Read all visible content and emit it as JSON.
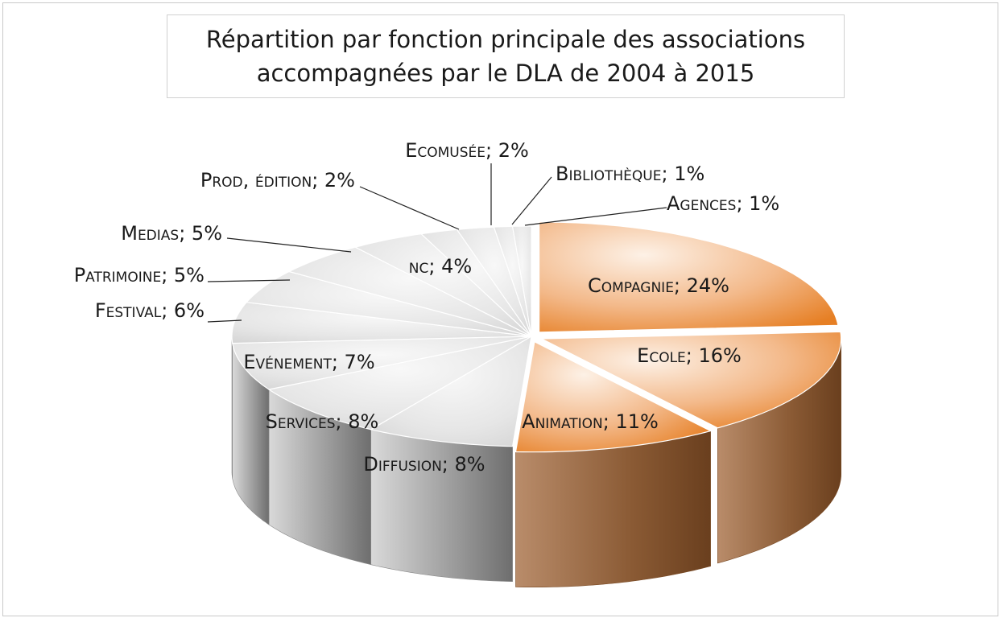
{
  "chart_data": {
    "type": "pie",
    "title_lines": [
      "Répartition par fonction principale des associations",
      "accompagnées par le DLA de 2004 à 2015"
    ],
    "slices": [
      {
        "label": "Compagnie",
        "value": 24,
        "text": "Compagnie; 24%",
        "color": "#ec8d3c"
      },
      {
        "label": "Ecole",
        "value": 16,
        "text": "Ecole; 16%",
        "color": "#ec8d3c"
      },
      {
        "label": "Animation",
        "value": 11,
        "text": "Animation; 11%",
        "color": "#ec8d3c"
      },
      {
        "label": "Diffusion",
        "value": 8,
        "text": "Diffusion; 8%",
        "color": "#7f7f7f"
      },
      {
        "label": "Services",
        "value": 8,
        "text": "Services; 8%",
        "color": "#7f7f7f"
      },
      {
        "label": "Evénement",
        "value": 7,
        "text": "Evénement; 7%",
        "color": "#7f7f7f"
      },
      {
        "label": "Festival",
        "value": 6,
        "text": "Festival; 6%",
        "color": "#7f7f7f"
      },
      {
        "label": "Patrimoine",
        "value": 5,
        "text": "Patrimoine; 5%",
        "color": "#7f7f7f"
      },
      {
        "label": "Medias",
        "value": 5,
        "text": "Medias; 5%",
        "color": "#7f7f7f"
      },
      {
        "label": "nc",
        "value": 4,
        "text": "nc; 4%",
        "color": "#7f7f7f"
      },
      {
        "label": "Prod, édition",
        "value": 2,
        "text": "Prod, édition; 2%",
        "color": "#7f7f7f"
      },
      {
        "label": "Ecomusée",
        "value": 2,
        "text": "Ecomusée; 2%",
        "color": "#7f7f7f"
      },
      {
        "label": "Bibliothèque",
        "value": 1,
        "text": "Bibliothèque; 1%",
        "color": "#7f7f7f"
      },
      {
        "label": "Agences",
        "value": 1,
        "text": "Agences; 1%",
        "color": "#7f7f7f"
      }
    ],
    "style": "3d-exploded-pie",
    "legend": "none"
  }
}
